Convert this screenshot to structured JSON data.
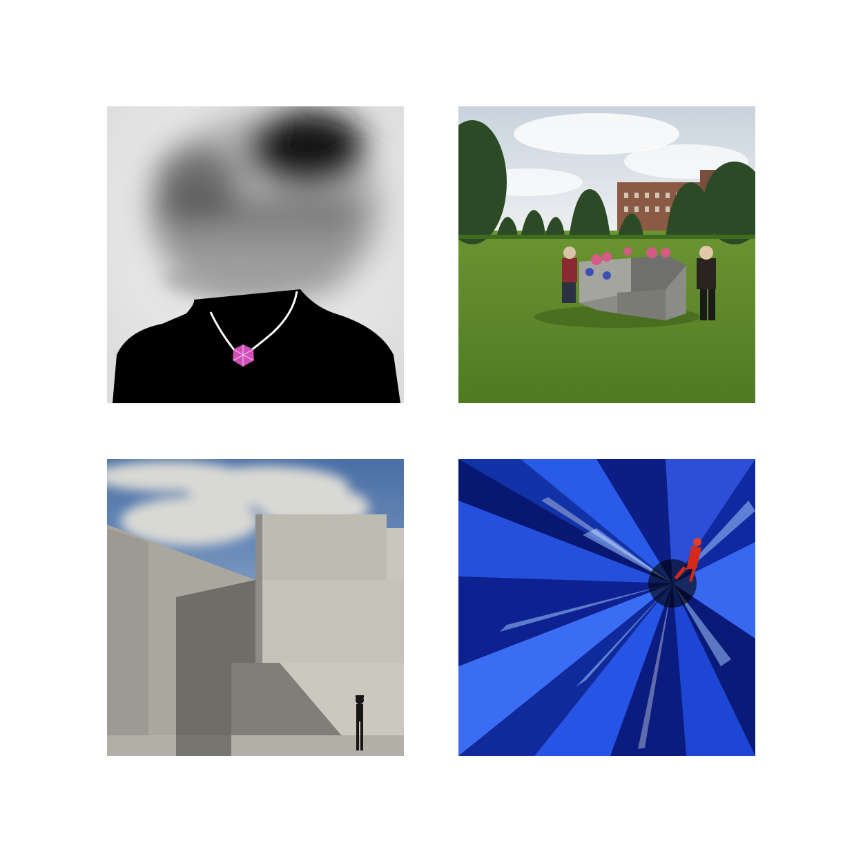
{
  "page": {
    "background": "#ffffff"
  },
  "grid": {
    "columns": 2,
    "rows": 2,
    "tiles": [
      {
        "id": "tile-1",
        "subject": "blurred-portrait-with-pendant",
        "palette": {
          "background": "#ececec",
          "shirt": "#000000",
          "pendant": "#d04fb8",
          "chain": "#ffffff"
        }
      },
      {
        "id": "tile-2",
        "subject": "sculpture-on-lawn",
        "palette": {
          "sky": "#dfe4ea",
          "lawn": "#5f8a2c",
          "trees": "#2d4a26",
          "sculpture": "#8b8c86",
          "flowers": "#d65a86",
          "building": "#8a5a44"
        }
      },
      {
        "id": "tile-3",
        "subject": "concrete-blocks-architecture",
        "palette": {
          "sky": "#5a7fb0",
          "cloud": "#d9d9d4",
          "concrete": "#b8b6ad",
          "shadow": "#6e6d67",
          "figure": "#151515"
        }
      },
      {
        "id": "tile-4",
        "subject": "blue-crystal-with-red-figure",
        "palette": {
          "deep": "#050a3c",
          "blue": "#1f4fe0",
          "light": "#9ec5ff",
          "figure": "#d52a1a"
        }
      }
    ]
  }
}
